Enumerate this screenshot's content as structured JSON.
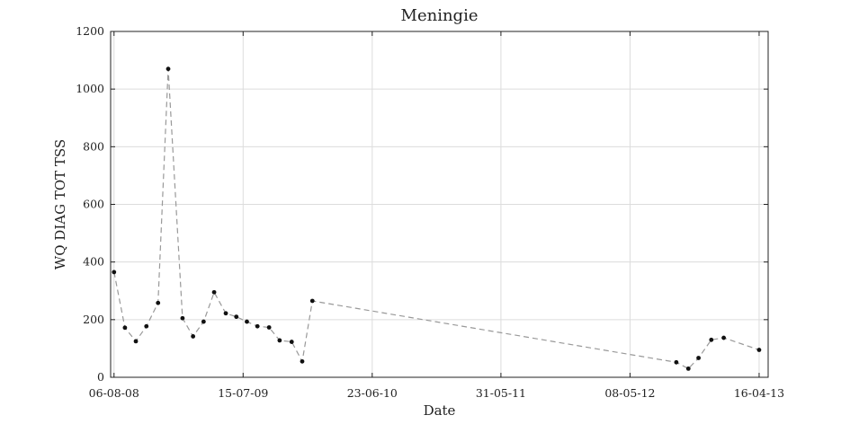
{
  "chart_data": {
    "type": "line",
    "title": "Meningie",
    "xlabel": "Date",
    "ylabel": "WQ DIAG TOT TSS",
    "xlim": [
      "2008-07-28",
      "2013-05-10"
    ],
    "ylim": [
      0,
      1200
    ],
    "grid": true,
    "xticks": [
      {
        "date": "2008-08-06",
        "label": "06-08-08"
      },
      {
        "date": "2009-07-15",
        "label": "15-07-09"
      },
      {
        "date": "2010-06-23",
        "label": "23-06-10"
      },
      {
        "date": "2011-05-31",
        "label": "31-05-11"
      },
      {
        "date": "2012-05-08",
        "label": "08-05-12"
      },
      {
        "date": "2013-04-16",
        "label": "16-04-13"
      }
    ],
    "yticks": [
      0,
      200,
      400,
      600,
      800,
      1000,
      1200
    ],
    "series": [
      {
        "color": "#999999",
        "marker_color": "#111111",
        "points": [
          {
            "x": "2008-08-06",
            "y": 365
          },
          {
            "x": "2008-09-04",
            "y": 172
          },
          {
            "x": "2008-10-03",
            "y": 125
          },
          {
            "x": "2008-10-31",
            "y": 177
          },
          {
            "x": "2008-12-01",
            "y": 258
          },
          {
            "x": "2008-12-28",
            "y": 1070
          },
          {
            "x": "2009-02-04",
            "y": 205
          },
          {
            "x": "2009-03-04",
            "y": 142
          },
          {
            "x": "2009-04-01",
            "y": 193
          },
          {
            "x": "2009-04-29",
            "y": 295
          },
          {
            "x": "2009-05-30",
            "y": 222
          },
          {
            "x": "2009-06-27",
            "y": 210
          },
          {
            "x": "2009-07-25",
            "y": 193
          },
          {
            "x": "2009-08-22",
            "y": 177
          },
          {
            "x": "2009-09-22",
            "y": 173
          },
          {
            "x": "2009-10-20",
            "y": 128
          },
          {
            "x": "2009-11-21",
            "y": 123
          },
          {
            "x": "2009-12-19",
            "y": 55
          },
          {
            "x": "2010-01-15",
            "y": 265
          },
          {
            "x": "2012-09-08",
            "y": 52
          },
          {
            "x": "2012-10-10",
            "y": 30
          },
          {
            "x": "2012-11-06",
            "y": 67
          },
          {
            "x": "2012-12-10",
            "y": 130
          },
          {
            "x": "2013-01-12",
            "y": 137
          },
          {
            "x": "2013-04-16",
            "y": 95
          }
        ]
      }
    ]
  }
}
